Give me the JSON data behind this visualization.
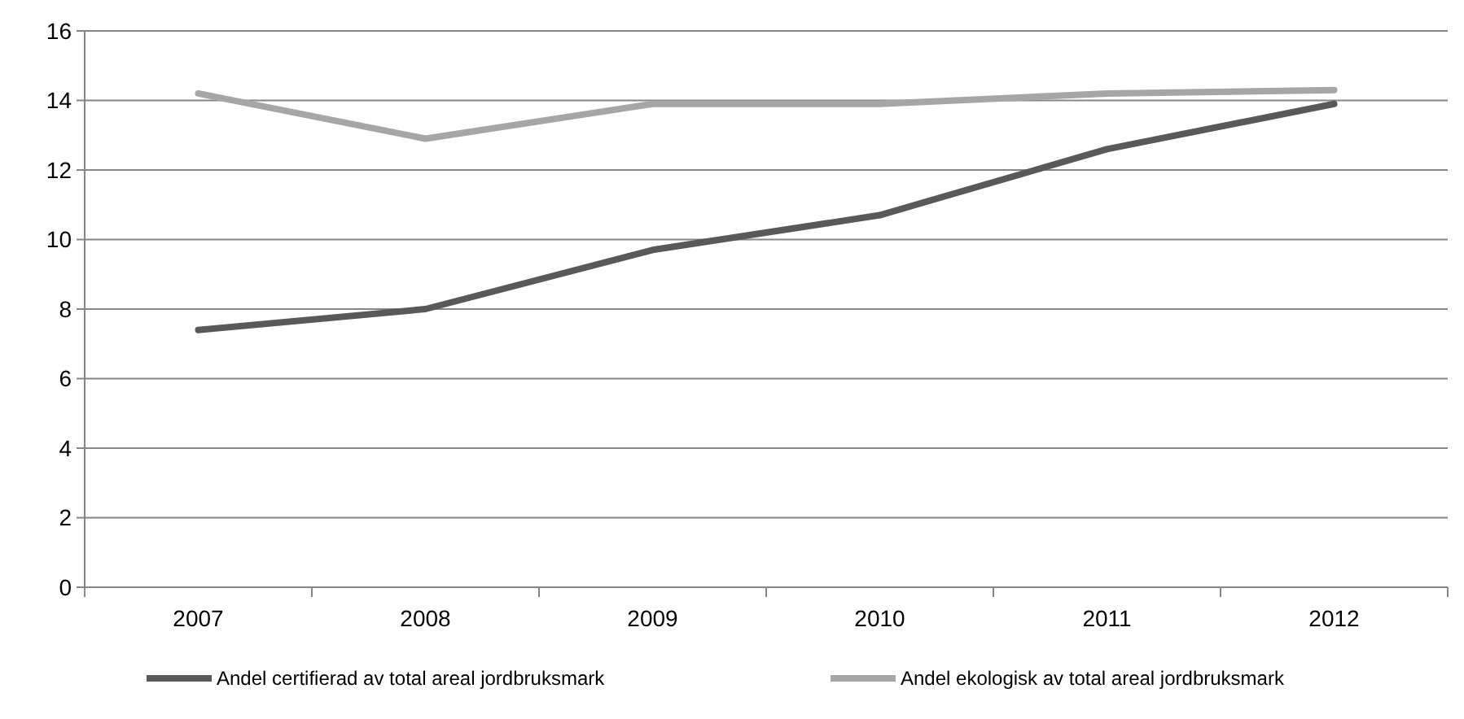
{
  "chart_data": {
    "type": "line",
    "categories": [
      "2007",
      "2008",
      "2009",
      "2010",
      "2011",
      "2012"
    ],
    "series": [
      {
        "name": "Andel certifierad av total areal jordbruksmark",
        "color": "#595959",
        "values": [
          7.4,
          8.0,
          9.7,
          10.7,
          12.6,
          13.9
        ]
      },
      {
        "name": "Andel ekologisk av total areal jordbruksmark",
        "color": "#a6a6a6",
        "values": [
          14.2,
          12.9,
          13.9,
          13.9,
          14.2,
          14.3
        ]
      }
    ],
    "ylim": [
      0,
      16
    ],
    "yticks": [
      0,
      2,
      4,
      6,
      8,
      10,
      12,
      14,
      16
    ],
    "grid": "y",
    "legend": "bottom",
    "marker": "none",
    "line_style": "solid"
  }
}
